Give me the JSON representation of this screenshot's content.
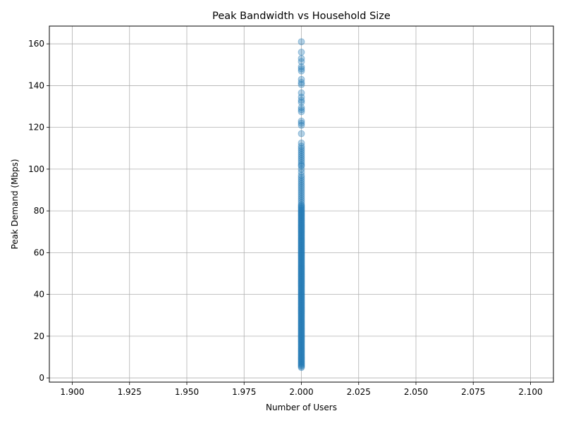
{
  "chart_data": {
    "type": "scatter",
    "title": "Peak Bandwidth vs Household Size",
    "xlabel": "Number of Users",
    "ylabel": "Peak Demand (Mbps)",
    "xlim": [
      1.89,
      2.11
    ],
    "ylim": [
      -2,
      168.5
    ],
    "xticks": [
      1.9,
      1.925,
      1.95,
      1.975,
      2.0,
      2.025,
      2.05,
      2.075,
      2.1
    ],
    "xtick_labels": [
      "1.900",
      "1.925",
      "1.950",
      "1.975",
      "2.000",
      "2.025",
      "2.050",
      "2.075",
      "2.100"
    ],
    "yticks": [
      0,
      20,
      40,
      60,
      80,
      100,
      120,
      140,
      160
    ],
    "ytick_labels": [
      "0",
      "20",
      "40",
      "60",
      "80",
      "100",
      "120",
      "140",
      "160"
    ],
    "grid": true,
    "series": [
      {
        "color": "#1f77b4",
        "opacity": 0.35,
        "x": 2.0,
        "y": [
          5,
          5.5,
          6,
          6.5,
          7,
          7.5,
          8,
          8.5,
          9,
          9.5,
          10,
          10.5,
          11,
          11.5,
          12,
          12.5,
          13,
          13.5,
          14,
          14.5,
          15,
          15.5,
          16,
          16.5,
          17,
          17.5,
          18,
          18.5,
          19,
          19.5,
          20,
          20.5,
          21,
          21.5,
          22,
          22.5,
          23,
          23.5,
          24,
          24.5,
          25,
          25.5,
          26,
          26.5,
          27,
          27.5,
          28,
          28.5,
          29,
          29.5,
          30,
          30.5,
          31,
          31.5,
          32,
          32.5,
          33,
          33.5,
          34,
          34.5,
          35,
          35.5,
          36,
          36.5,
          37,
          37.5,
          38,
          38.5,
          39,
          39.5,
          40,
          40.5,
          41,
          41.5,
          42,
          42.5,
          43,
          43.5,
          44,
          44.5,
          45,
          45.5,
          46,
          46.5,
          47,
          47.5,
          48,
          48.5,
          49,
          49.5,
          50,
          50.5,
          51,
          51.5,
          52,
          52.5,
          53,
          53.5,
          54,
          54.5,
          55,
          55.5,
          56,
          56.5,
          57,
          57.5,
          58,
          58.5,
          59,
          59.5,
          60,
          60.5,
          61,
          61.5,
          62,
          62.5,
          63,
          63.5,
          64,
          64.5,
          65,
          65.5,
          66,
          66.5,
          67,
          67.5,
          68,
          68.5,
          69,
          69.5,
          70,
          70.5,
          71,
          71.5,
          72,
          72.5,
          73,
          73.5,
          74,
          74.5,
          75,
          75.5,
          76,
          76.5,
          77,
          77.5,
          78,
          78.5,
          79,
          79.5,
          80,
          80.5,
          81,
          81.5,
          82,
          82.5,
          83,
          84,
          85,
          86,
          87,
          88,
          89,
          90,
          91,
          92,
          93,
          94,
          95,
          96,
          97,
          98.5,
          100,
          101.5,
          102,
          103,
          104,
          105,
          106,
          107,
          108,
          109,
          110,
          111,
          112.5,
          117,
          121,
          122,
          123,
          127.5,
          128.5,
          129.5,
          132,
          133,
          134.5,
          136.5,
          140.5,
          141.5,
          143,
          147,
          148,
          149,
          151.5,
          153,
          156,
          161
        ]
      }
    ]
  }
}
